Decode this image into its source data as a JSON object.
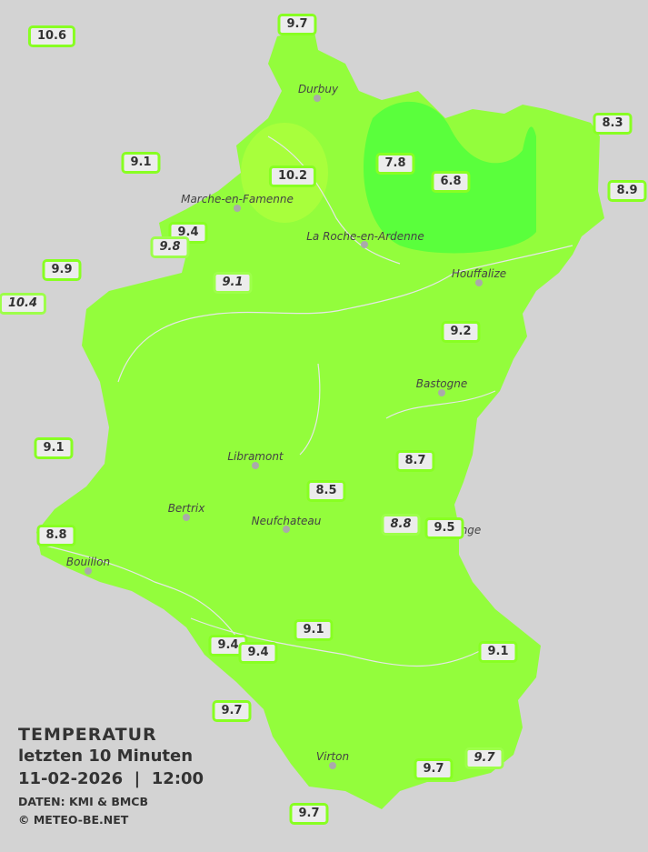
{
  "legend": {
    "title": "TEMPERATUR",
    "period": "letzten 10 Minuten",
    "datetime": "11-02-2026  |  12:00",
    "source": "DATEN: KMI & BMCB",
    "copyright": "© METEO-BE.NET"
  },
  "colors": {
    "background": "#d3d3d3",
    "zone_9_10": "#93fd3c",
    "zone_above_10": "#a8ff3c",
    "zone_below_8": "#5aff3c",
    "label_border": "#88ff22",
    "label_fill": "#ececec"
  },
  "towns": [
    "Durbuy",
    "Marche-en-Famenne",
    "La Roche-en-Ardenne",
    "Houffalize",
    "Bastogne",
    "Libramont",
    "Bertrix",
    "Neufchateau",
    "Bouillon",
    "nge",
    "Virton"
  ],
  "stations": [
    {
      "value": "10.6",
      "italic": false
    },
    {
      "value": "9.7",
      "italic": false
    },
    {
      "value": "8.3",
      "italic": false
    },
    {
      "value": "9.1",
      "italic": false
    },
    {
      "value": "7.8",
      "italic": false
    },
    {
      "value": "10.2",
      "italic": false
    },
    {
      "value": "6.8",
      "italic": false
    },
    {
      "value": "8.9",
      "italic": false
    },
    {
      "value": "9.4",
      "italic": false
    },
    {
      "value": "9.8",
      "italic": true
    },
    {
      "value": "9.9",
      "italic": false
    },
    {
      "value": "10.4",
      "italic": true
    },
    {
      "value": "9.1",
      "italic": true
    },
    {
      "value": "9.2",
      "italic": false
    },
    {
      "value": "9.1",
      "italic": false
    },
    {
      "value": "8.7",
      "italic": false
    },
    {
      "value": "8.5",
      "italic": false
    },
    {
      "value": "8.8",
      "italic": true
    },
    {
      "value": "9.5",
      "italic": false
    },
    {
      "value": "8.8",
      "italic": false
    },
    {
      "value": "9.1",
      "italic": false
    },
    {
      "value": "9.4",
      "italic": false
    },
    {
      "value": "9.4",
      "italic": false
    },
    {
      "value": "9.1",
      "italic": false
    },
    {
      "value": "9.7",
      "italic": false
    },
    {
      "value": "9.7",
      "italic": false
    },
    {
      "value": "9.7",
      "italic": true
    },
    {
      "value": "9.7",
      "italic": false
    }
  ]
}
